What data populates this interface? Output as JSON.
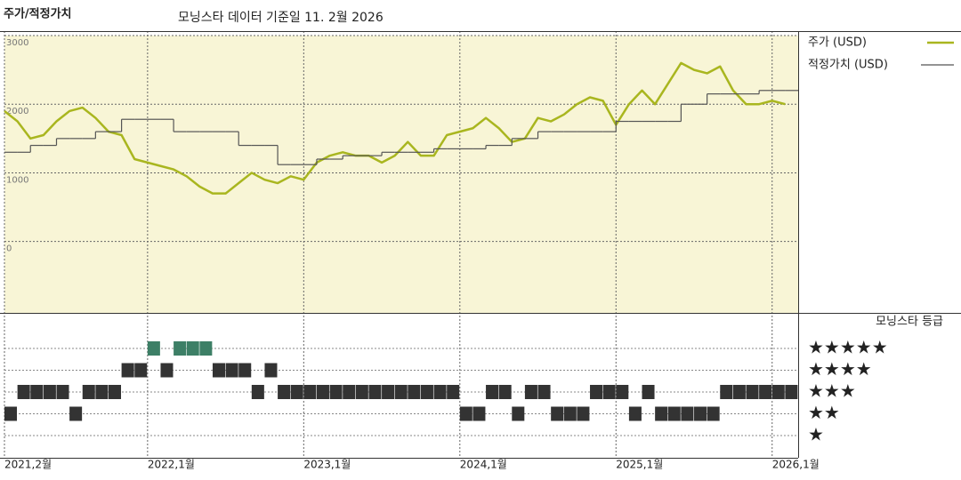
{
  "chart_data": [
    {
      "type": "line",
      "title": "주가/적정가치",
      "subtitle": "모닝스타 데이터 기준일 11. 2월 2026",
      "x": [
        "2021-02",
        "2021-03",
        "2021-04",
        "2021-05",
        "2021-06",
        "2021-07",
        "2021-08",
        "2021-09",
        "2021-10",
        "2021-11",
        "2021-12",
        "2022-01",
        "2022-02",
        "2022-03",
        "2022-04",
        "2022-05",
        "2022-06",
        "2022-07",
        "2022-08",
        "2022-09",
        "2022-10",
        "2022-11",
        "2022-12",
        "2023-01",
        "2023-02",
        "2023-03",
        "2023-04",
        "2023-05",
        "2023-06",
        "2023-07",
        "2023-08",
        "2023-09",
        "2023-10",
        "2023-11",
        "2023-12",
        "2024-01",
        "2024-02",
        "2024-03",
        "2024-04",
        "2024-05",
        "2024-06",
        "2024-07",
        "2024-08",
        "2024-09",
        "2024-10",
        "2024-11",
        "2024-12",
        "2025-01",
        "2025-02",
        "2025-03",
        "2025-04",
        "2025-05",
        "2025-06",
        "2025-07",
        "2025-08",
        "2025-09",
        "2025-10",
        "2025-11",
        "2025-12",
        "2026-01",
        "2026-02"
      ],
      "series": [
        {
          "name": "주가 (USD)",
          "color": "#a9b61f",
          "values": [
            1900,
            1750,
            1500,
            1550,
            1750,
            1900,
            1950,
            1800,
            1600,
            1550,
            1200,
            1150,
            1100,
            1050,
            950,
            800,
            700,
            700,
            850,
            1000,
            900,
            850,
            950,
            900,
            1150,
            1250,
            1300,
            1250,
            1250,
            1150,
            1250,
            1450,
            1250,
            1250,
            1550,
            1600,
            1650,
            1800,
            1650,
            1450,
            1500,
            1800,
            1750,
            1850,
            2000,
            2100,
            2050,
            1700,
            2000,
            2200,
            2000,
            2300,
            2600,
            2500,
            2450,
            2550,
            2200,
            2000,
            2000,
            2050,
            2000
          ]
        },
        {
          "name": "적정가치 (USD)",
          "color": "#555555",
          "step": true,
          "values": [
            1300,
            1300,
            1400,
            1400,
            1500,
            1500,
            1500,
            1600,
            1600,
            1780,
            1780,
            1780,
            1780,
            1600,
            1600,
            1600,
            1600,
            1600,
            1400,
            1400,
            1400,
            1120,
            1120,
            1120,
            1200,
            1200,
            1250,
            1250,
            1250,
            1300,
            1300,
            1300,
            1300,
            1350,
            1350,
            1350,
            1350,
            1400,
            1400,
            1500,
            1500,
            1600,
            1600,
            1600,
            1600,
            1600,
            1600,
            1750,
            1750,
            1750,
            1750,
            1750,
            2000,
            2000,
            2150,
            2150,
            2150,
            2150,
            2200,
            2200,
            2200
          ]
        }
      ],
      "xlim": [
        "2021-02",
        "2026-03"
      ],
      "xticks": [
        {
          "value": "2021-02",
          "label": "2021,2월"
        },
        {
          "value": "2022-01",
          "label": "2022,1월"
        },
        {
          "value": "2023-01",
          "label": "2023,1월"
        },
        {
          "value": "2024-01",
          "label": "2024,1월"
        },
        {
          "value": "2025-01",
          "label": "2025,1월"
        },
        {
          "value": "2026-01",
          "label": "2026,1월"
        }
      ],
      "ylim": [
        -1040,
        3000
      ],
      "yticks": [
        0,
        1000,
        2000,
        3000
      ],
      "grid": true
    },
    {
      "type": "strip",
      "title": "모닝스타 등급",
      "categories": [
        "★★★★★",
        "★★★★",
        "★★★",
        "★★",
        "★"
      ],
      "x": [
        "2021-02",
        "2021-03",
        "2021-04",
        "2021-05",
        "2021-06",
        "2021-07",
        "2021-08",
        "2021-09",
        "2021-10",
        "2021-11",
        "2021-12",
        "2022-01",
        "2022-02",
        "2022-03",
        "2022-04",
        "2022-05",
        "2022-06",
        "2022-07",
        "2022-08",
        "2022-09",
        "2022-10",
        "2022-11",
        "2022-12",
        "2023-01",
        "2023-02",
        "2023-03",
        "2023-04",
        "2023-05",
        "2023-06",
        "2023-07",
        "2023-08",
        "2023-09",
        "2023-10",
        "2023-11",
        "2023-12",
        "2024-01",
        "2024-02",
        "2024-03",
        "2024-04",
        "2024-05",
        "2024-06",
        "2024-07",
        "2024-08",
        "2024-09",
        "2024-10",
        "2024-11",
        "2024-12",
        "2025-01",
        "2025-02",
        "2025-03",
        "2025-04",
        "2025-05",
        "2025-06",
        "2025-07",
        "2025-08",
        "2025-09",
        "2025-10",
        "2025-11",
        "2025-12",
        "2026-01",
        "2026-02"
      ],
      "values": [
        2,
        3,
        3,
        3,
        3,
        2,
        3,
        3,
        3,
        4,
        4,
        5,
        4,
        5,
        5,
        5,
        4,
        4,
        4,
        3,
        4,
        3,
        3,
        3,
        3,
        3,
        3,
        3,
        3,
        3,
        3,
        3,
        3,
        3,
        3,
        2,
        2,
        3,
        3,
        2,
        3,
        3,
        2,
        2,
        2,
        3,
        3,
        3,
        2,
        3,
        2,
        2,
        2,
        2,
        2,
        3,
        3,
        3,
        3,
        3,
        3
      ],
      "color": "#333333",
      "top_color": "#3d7f66"
    }
  ]
}
